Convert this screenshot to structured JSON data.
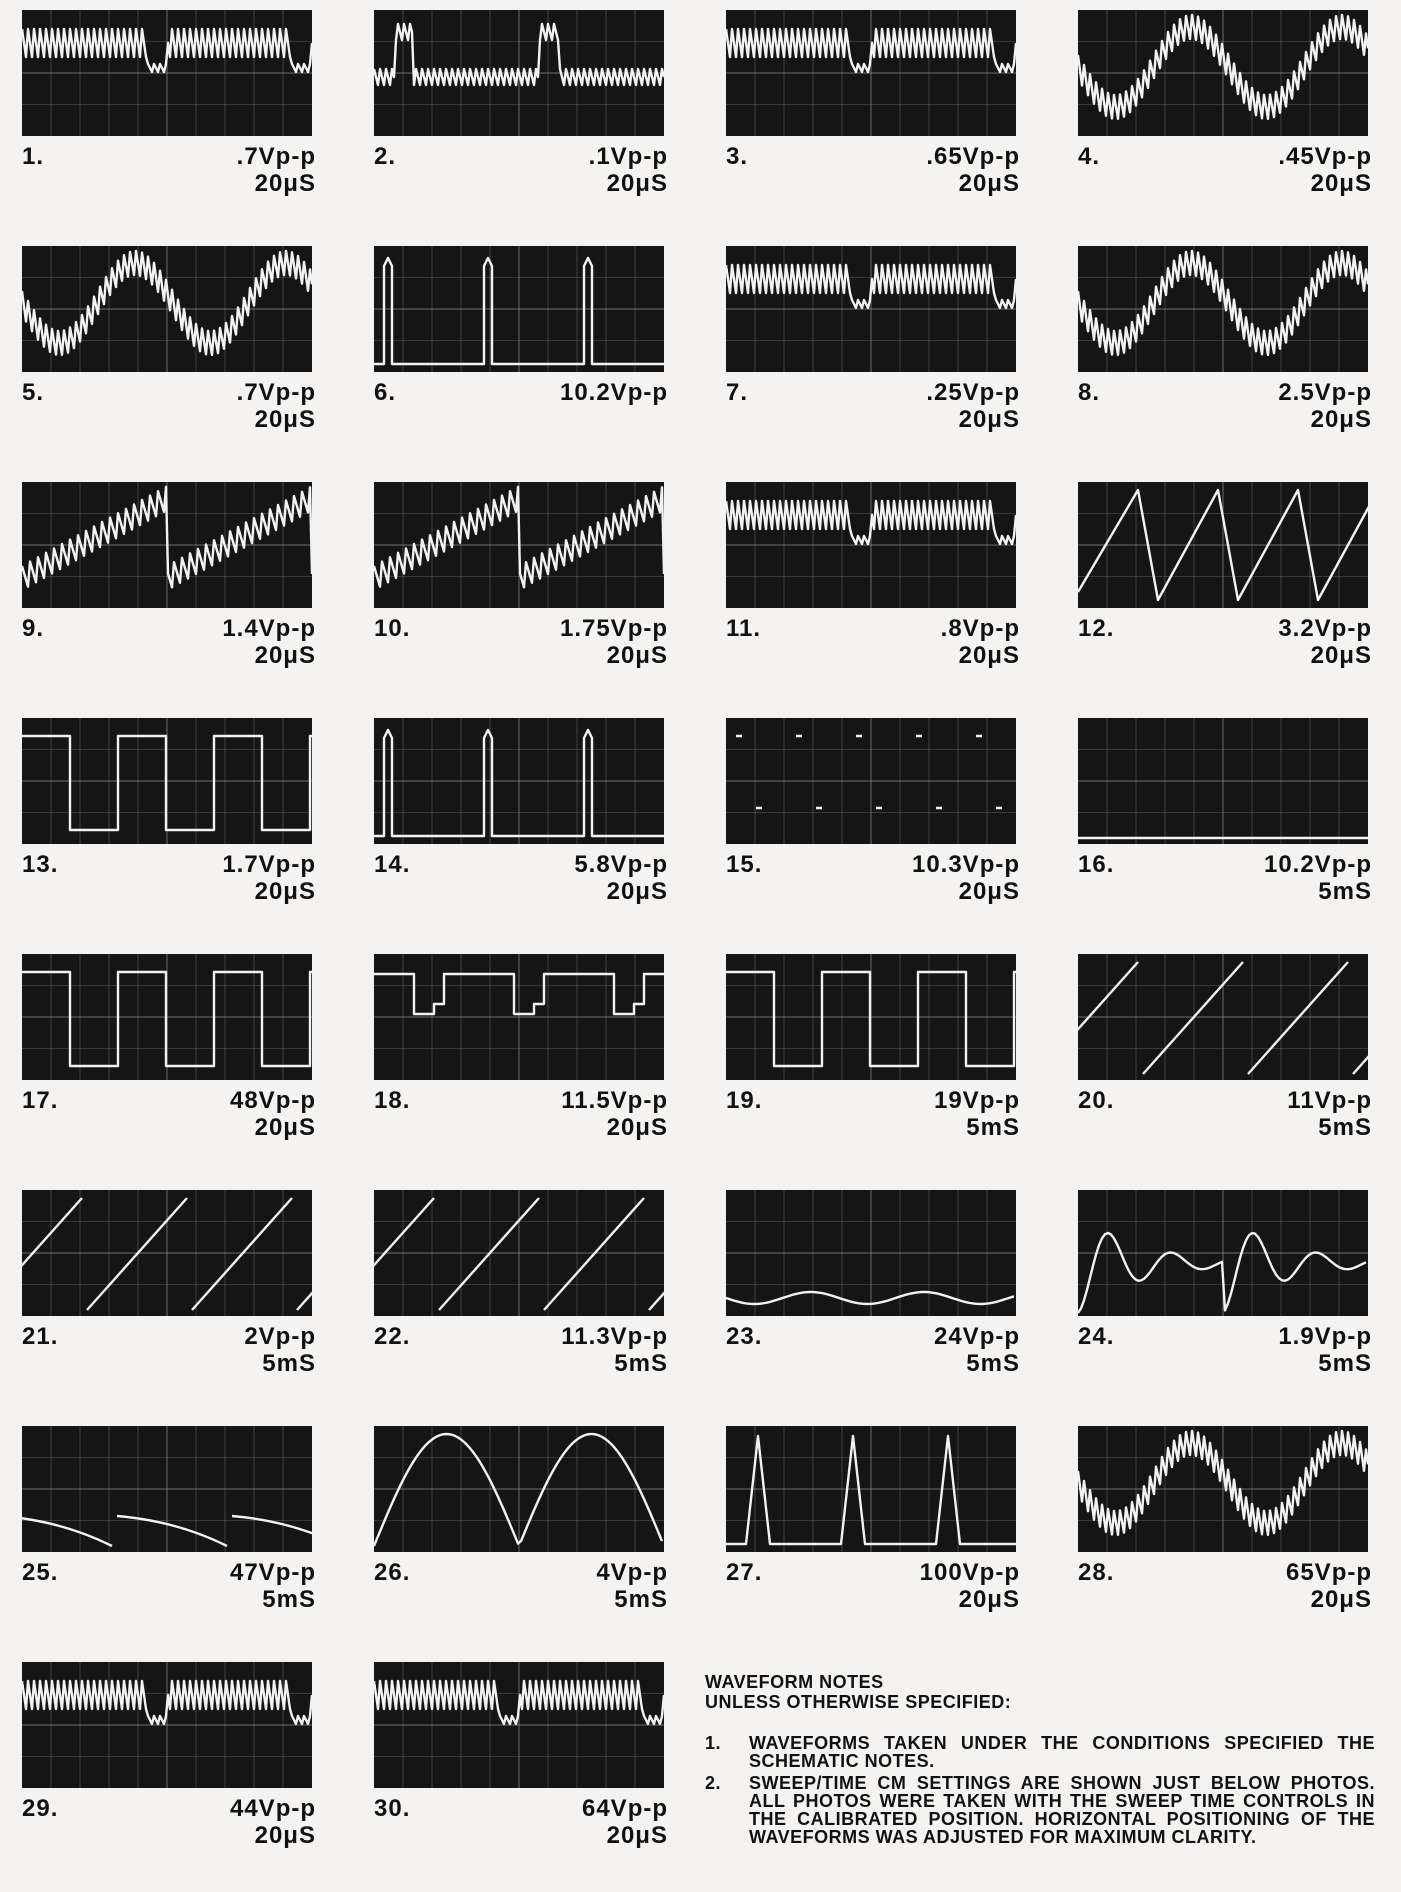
{
  "waveforms": [
    {
      "number": "1.",
      "voltage": ".7Vp-p",
      "time": "20μS",
      "shape": "burst-square"
    },
    {
      "number": "2.",
      "voltage": ".1Vp-p",
      "time": "20μS",
      "shape": "pulse-spike"
    },
    {
      "number": "3.",
      "voltage": ".65Vp-p",
      "time": "20μS",
      "shape": "burst-dense"
    },
    {
      "number": "4.",
      "voltage": ".45Vp-p",
      "time": "20μS",
      "shape": "burst-sine"
    },
    {
      "number": "5.",
      "voltage": ".7Vp-p",
      "time": "20μS",
      "shape": "burst-sine"
    },
    {
      "number": "6.",
      "voltage": "10.2Vp-p",
      "time": "",
      "shape": "square-low"
    },
    {
      "number": "7.",
      "voltage": ".25Vp-p",
      "time": "20μS",
      "shape": "burst-square"
    },
    {
      "number": "8.",
      "voltage": "2.5Vp-p",
      "time": "20μS",
      "shape": "sine-noise"
    },
    {
      "number": "9.",
      "voltage": "1.4Vp-p",
      "time": "20μS",
      "shape": "ramp-noise"
    },
    {
      "number": "10.",
      "voltage": "1.75Vp-p",
      "time": "20μS",
      "shape": "hump-noise"
    },
    {
      "number": "11.",
      "voltage": ".8Vp-p",
      "time": "20μS",
      "shape": "burst-square"
    },
    {
      "number": "12.",
      "voltage": "3.2Vp-p",
      "time": "20μS",
      "shape": "triangle"
    },
    {
      "number": "13.",
      "voltage": "1.7Vp-p",
      "time": "20μS",
      "shape": "square"
    },
    {
      "number": "14.",
      "voltage": "5.8Vp-p",
      "time": "20μS",
      "shape": "square-low"
    },
    {
      "number": "15.",
      "voltage": "10.3Vp-p",
      "time": "20μS",
      "shape": "dots"
    },
    {
      "number": "16.",
      "voltage": "10.2Vp-p",
      "time": "5mS",
      "shape": "flat-low"
    },
    {
      "number": "17.",
      "voltage": "48Vp-p",
      "time": "20μS",
      "shape": "square"
    },
    {
      "number": "18.",
      "voltage": "11.5Vp-p",
      "time": "20μS",
      "shape": "step"
    },
    {
      "number": "19.",
      "voltage": "19Vp-p",
      "time": "5mS",
      "shape": "square"
    },
    {
      "number": "20.",
      "voltage": "11Vp-p",
      "time": "5mS",
      "shape": "sawtooth"
    },
    {
      "number": "21.",
      "voltage": "2Vp-p",
      "time": "5mS",
      "shape": "sawtooth"
    },
    {
      "number": "22.",
      "voltage": "11.3Vp-p",
      "time": "5mS",
      "shape": "sawtooth"
    },
    {
      "number": "23.",
      "voltage": "24Vp-p",
      "time": "5mS",
      "shape": "low-curve"
    },
    {
      "number": "24.",
      "voltage": "1.9Vp-p",
      "time": "5mS",
      "shape": "ringing"
    },
    {
      "number": "25.",
      "voltage": "47Vp-p",
      "time": "5mS",
      "shape": "low-ramp"
    },
    {
      "number": "26.",
      "voltage": "4Vp-p",
      "time": "5mS",
      "shape": "arches"
    },
    {
      "number": "27.",
      "voltage": "100Vp-p",
      "time": "20μS",
      "shape": "narrow-pulse"
    },
    {
      "number": "28.",
      "voltage": "65Vp-p",
      "time": "20μS",
      "shape": "burst-sine"
    },
    {
      "number": "29.",
      "voltage": "44Vp-p",
      "time": "20μS",
      "shape": "burst-dense"
    },
    {
      "number": "30.",
      "voltage": "64Vp-p",
      "time": "20μS",
      "shape": "burst-dense"
    }
  ],
  "notes": {
    "heading_line1": "WAVEFORM NOTES",
    "heading_line2": "UNLESS OTHERWISE SPECIFIED:",
    "items": [
      {
        "num": "1.",
        "text": "WAVEFORMS TAKEN UNDER THE CONDITIONS SPECIFIED THE SCHEMATIC NOTES."
      },
      {
        "num": "2.",
        "text": "SWEEP/TIME CM SETTINGS ARE SHOWN JUST BELOW PHOTOS. ALL PHOTOS WERE TAKEN WITH THE SWEEP TIME CONTROLS IN THE CALIBRATED POSITION. HORIZONTAL POSITIONING OF THE WAVEFORMS WAS ADJUSTED FOR MAXIMUM CLARITY."
      }
    ]
  },
  "colors": {
    "screen": "#151515",
    "trace": "#f2f2f2",
    "graticule": "#9a9a9a"
  }
}
